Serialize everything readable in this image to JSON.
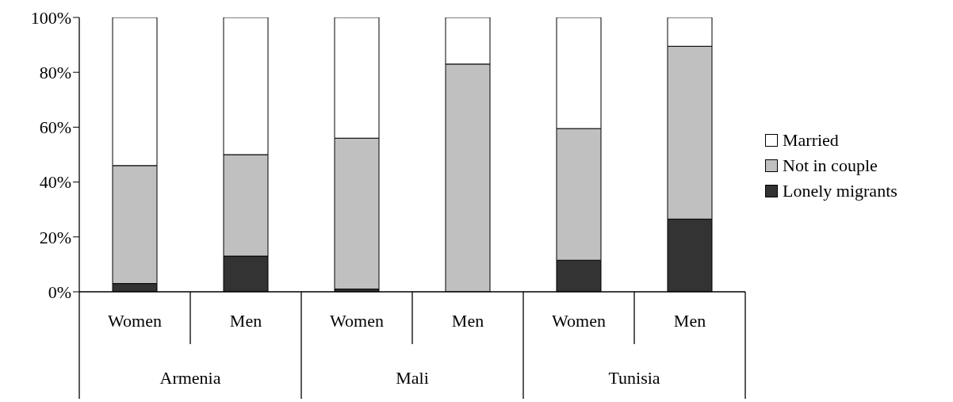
{
  "chart_data": {
    "type": "bar",
    "stacked": true,
    "categories": [
      "Women",
      "Men",
      "Women",
      "Men",
      "Women",
      "Men"
    ],
    "series": [
      {
        "name": "Lonely migrants",
        "color": "#333333",
        "values": [
          3,
          13,
          1,
          0,
          11.5,
          26.5
        ]
      },
      {
        "name": "Not in couple",
        "color": "#c0c0c0",
        "values": [
          43,
          37,
          55,
          83,
          48,
          63
        ]
      },
      {
        "name": "Married",
        "color": "#ffffff",
        "values": [
          54,
          50,
          44,
          17,
          40.5,
          10.5
        ]
      }
    ],
    "annotations": [
      "Armenia",
      "Mali",
      "Tunisia"
    ],
    "ylim": [
      0,
      100
    ],
    "yticks": [
      {
        "value": 0,
        "label": "0%"
      },
      {
        "value": 20,
        "label": "20%"
      },
      {
        "value": 40,
        "label": "40%"
      },
      {
        "value": 60,
        "label": "60%"
      },
      {
        "value": 80,
        "label": "80%"
      },
      {
        "value": 100,
        "label": "100%"
      }
    ],
    "grid": false,
    "legend": "right"
  }
}
